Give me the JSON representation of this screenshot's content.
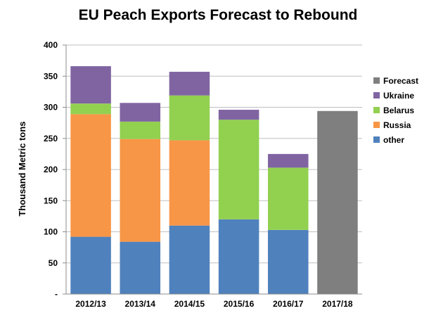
{
  "chart_data": {
    "type": "bar",
    "stacked": true,
    "title": "EU Peach Exports Forecast to Rebound",
    "xlabel": "",
    "ylabel": "Thousand Metric tons",
    "ylim": [
      0,
      400
    ],
    "yticks": [
      0,
      50,
      100,
      150,
      200,
      250,
      300,
      350,
      400
    ],
    "ytick_labels": [
      "-",
      "50",
      "100",
      "150",
      "200",
      "250",
      "300",
      "350",
      "400"
    ],
    "grid": true,
    "legend_position": "right",
    "categories": [
      "2012/13",
      "2013/14",
      "2014/15",
      "2015/16",
      "2016/17",
      "2017/18"
    ],
    "series": [
      {
        "name": "other",
        "color": "#4f81bd",
        "values": [
          92,
          84,
          110,
          120,
          103,
          0
        ]
      },
      {
        "name": "Russia",
        "color": "#f79646",
        "values": [
          197,
          165,
          137,
          0,
          0,
          0
        ]
      },
      {
        "name": "Belarus",
        "color": "#92d050",
        "values": [
          17,
          28,
          72,
          160,
          100,
          0
        ]
      },
      {
        "name": "Ukraine",
        "color": "#8064a2",
        "values": [
          60,
          30,
          38,
          16,
          22,
          0
        ]
      },
      {
        "name": "Forecast",
        "color": "#7f7f7f",
        "values": [
          0,
          0,
          0,
          0,
          0,
          294
        ]
      }
    ],
    "legend_order": [
      "Forecast",
      "Ukraine",
      "Belarus",
      "Russia",
      "other"
    ]
  }
}
